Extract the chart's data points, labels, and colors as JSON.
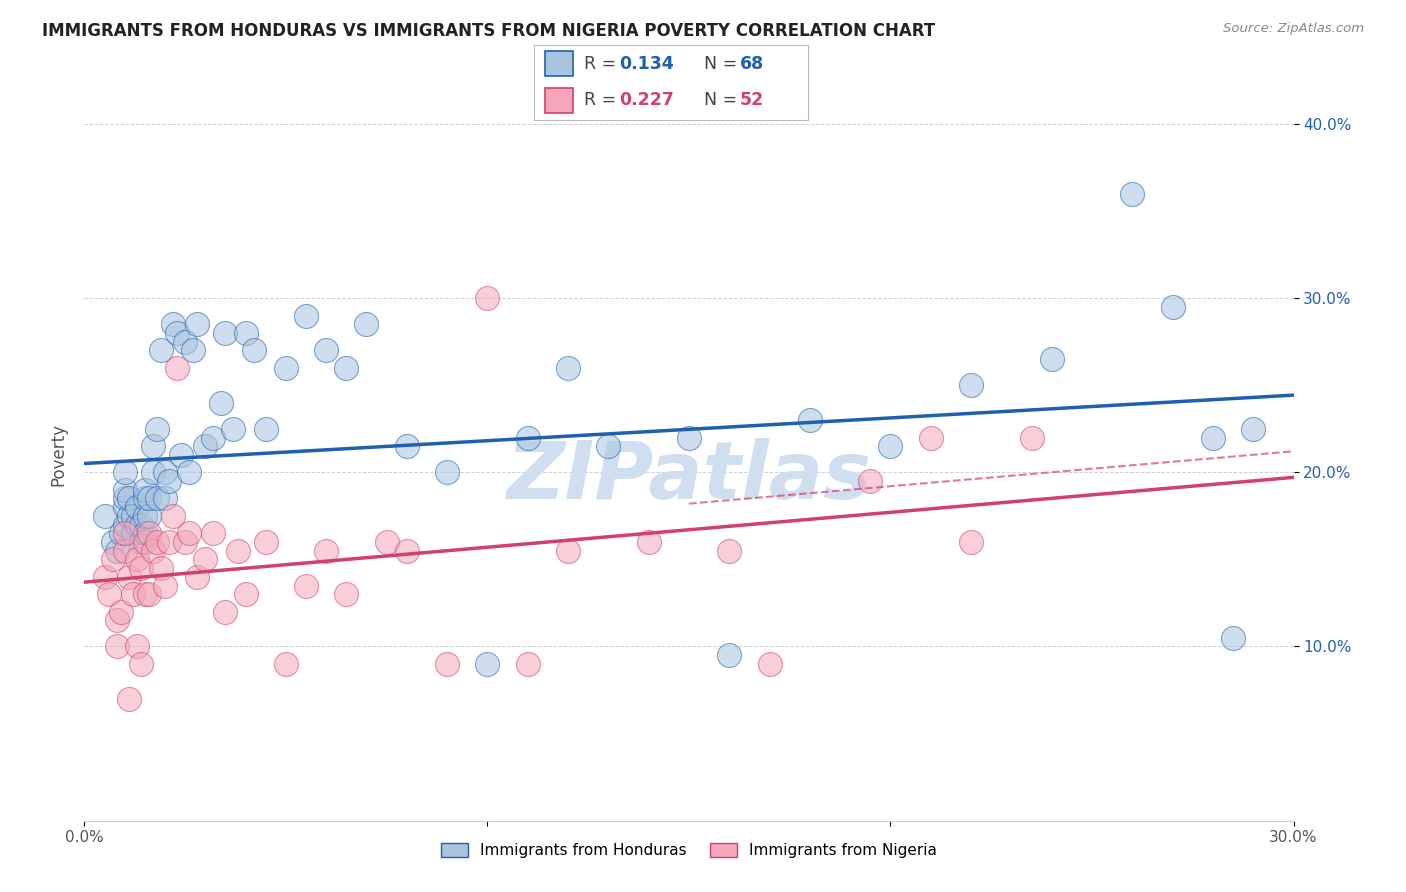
{
  "title": "IMMIGRANTS FROM HONDURAS VS IMMIGRANTS FROM NIGERIA POVERTY CORRELATION CHART",
  "source": "Source: ZipAtlas.com",
  "ylabel": "Poverty",
  "xlim": [
    0.0,
    0.3
  ],
  "ylim": [
    0.0,
    0.42
  ],
  "color_honduras": "#a8c4e0",
  "color_nigeria": "#f4a7b9",
  "line_color_honduras": "#2060b0",
  "line_color_nigeria": "#d04070",
  "watermark": "ZIPatlas",
  "watermark_color": "#d0dff0",
  "background_color": "#ffffff",
  "honduras_x": [
    0.005,
    0.007,
    0.008,
    0.009,
    0.01,
    0.01,
    0.01,
    0.01,
    0.01,
    0.011,
    0.011,
    0.012,
    0.012,
    0.013,
    0.013,
    0.014,
    0.014,
    0.015,
    0.015,
    0.015,
    0.015,
    0.016,
    0.016,
    0.017,
    0.017,
    0.018,
    0.018,
    0.019,
    0.02,
    0.02,
    0.021,
    0.022,
    0.023,
    0.024,
    0.025,
    0.026,
    0.027,
    0.028,
    0.03,
    0.032,
    0.034,
    0.035,
    0.037,
    0.04,
    0.042,
    0.045,
    0.05,
    0.055,
    0.06,
    0.065,
    0.07,
    0.08,
    0.09,
    0.1,
    0.11,
    0.12,
    0.13,
    0.15,
    0.16,
    0.18,
    0.2,
    0.22,
    0.24,
    0.26,
    0.27,
    0.28,
    0.285,
    0.29
  ],
  "honduras_y": [
    0.175,
    0.16,
    0.155,
    0.165,
    0.17,
    0.18,
    0.185,
    0.19,
    0.2,
    0.175,
    0.185,
    0.165,
    0.175,
    0.17,
    0.18,
    0.16,
    0.17,
    0.165,
    0.175,
    0.185,
    0.19,
    0.175,
    0.185,
    0.2,
    0.215,
    0.185,
    0.225,
    0.27,
    0.185,
    0.2,
    0.195,
    0.285,
    0.28,
    0.21,
    0.275,
    0.2,
    0.27,
    0.285,
    0.215,
    0.22,
    0.24,
    0.28,
    0.225,
    0.28,
    0.27,
    0.225,
    0.26,
    0.29,
    0.27,
    0.26,
    0.285,
    0.215,
    0.2,
    0.09,
    0.22,
    0.26,
    0.215,
    0.22,
    0.095,
    0.23,
    0.215,
    0.25,
    0.265,
    0.36,
    0.295,
    0.22,
    0.105,
    0.225
  ],
  "nigeria_x": [
    0.005,
    0.006,
    0.007,
    0.008,
    0.008,
    0.009,
    0.01,
    0.01,
    0.011,
    0.011,
    0.012,
    0.013,
    0.013,
    0.014,
    0.014,
    0.015,
    0.015,
    0.016,
    0.016,
    0.017,
    0.018,
    0.019,
    0.02,
    0.021,
    0.022,
    0.023,
    0.025,
    0.026,
    0.028,
    0.03,
    0.032,
    0.035,
    0.038,
    0.04,
    0.045,
    0.05,
    0.055,
    0.06,
    0.065,
    0.075,
    0.08,
    0.09,
    0.1,
    0.11,
    0.12,
    0.14,
    0.16,
    0.17,
    0.195,
    0.21,
    0.22,
    0.235
  ],
  "nigeria_y": [
    0.14,
    0.13,
    0.15,
    0.115,
    0.1,
    0.12,
    0.155,
    0.165,
    0.14,
    0.07,
    0.13,
    0.15,
    0.1,
    0.145,
    0.09,
    0.13,
    0.16,
    0.13,
    0.165,
    0.155,
    0.16,
    0.145,
    0.135,
    0.16,
    0.175,
    0.26,
    0.16,
    0.165,
    0.14,
    0.15,
    0.165,
    0.12,
    0.155,
    0.13,
    0.16,
    0.09,
    0.135,
    0.155,
    0.13,
    0.16,
    0.155,
    0.09,
    0.3,
    0.09,
    0.155,
    0.16,
    0.155,
    0.09,
    0.195,
    0.22,
    0.16,
    0.22
  ]
}
